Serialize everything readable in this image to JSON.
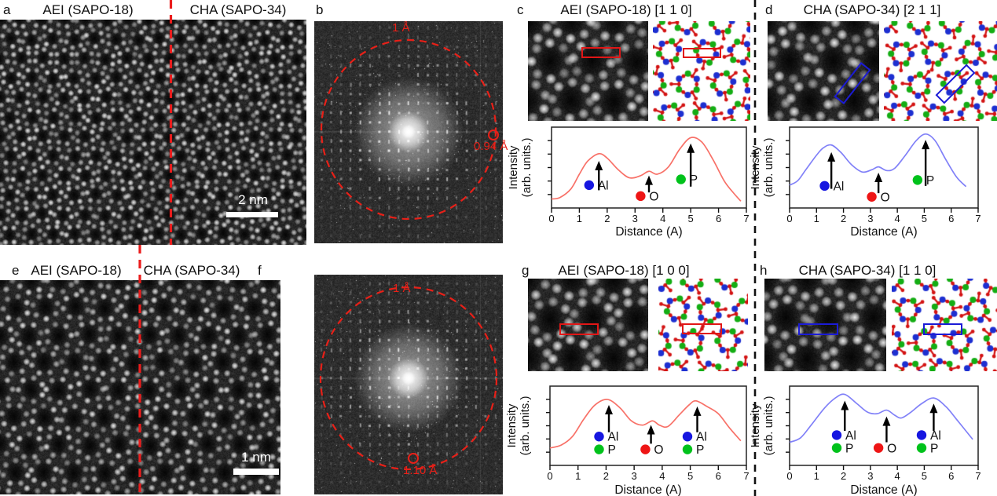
{
  "figure": {
    "panels": {
      "a": {
        "letter": "a",
        "label_left": "AEI (SAPO-18)",
        "label_right": "CHA (SAPO-34)",
        "scale_bar": "2 nm"
      },
      "b": {
        "letter": "b",
        "ring_label": "1 Å",
        "spot_label": "0.94 Å"
      },
      "c": {
        "letter": "c",
        "title": "AEI (SAPO-18) [1 1 0]"
      },
      "d": {
        "letter": "d",
        "title": "CHA (SAPO-34) [2 1 1]"
      },
      "e": {
        "letter": "e",
        "label_left": "AEI (SAPO-18)",
        "label_right": "CHA (SAPO-34)",
        "scale_bar": "1 nm"
      },
      "f": {
        "letter": "f",
        "ring_label": "1 Å",
        "spot_label": "1.10 Å"
      },
      "g": {
        "letter": "g",
        "title": "AEI (SAPO-18) [1 0 0]"
      },
      "h": {
        "letter": "h",
        "title": "CHA (SAPO-34) [1 1 0]"
      }
    },
    "colors": {
      "red_annotation": "#e82018",
      "blue_annotation": "#1b1bd6",
      "red_curve": "#f87168",
      "blue_curve": "#8181f8",
      "al_dot": "#1616e0",
      "o_dot": "#ee1515",
      "p_dot": "#00c21b"
    }
  },
  "chart_data": [
    {
      "id": "c",
      "type": "line",
      "curve_color": "#f87168",
      "xlabel": "Distance (A)",
      "ylabel": [
        "Intensity",
        "(arb. units.)"
      ],
      "xlim": [
        0,
        7
      ],
      "xticks": [
        0,
        1,
        2,
        3,
        4,
        5,
        6,
        7
      ],
      "x": [
        0,
        0.3,
        0.7,
        1.0,
        1.3,
        1.7,
        2.0,
        2.4,
        2.8,
        3.2,
        3.5,
        3.8,
        4.2,
        4.6,
        5.0,
        5.4,
        5.8,
        6.2,
        6.5,
        6.8
      ],
      "y": [
        0.08,
        0.1,
        0.22,
        0.42,
        0.6,
        0.7,
        0.64,
        0.48,
        0.37,
        0.4,
        0.46,
        0.42,
        0.52,
        0.76,
        0.92,
        0.86,
        0.62,
        0.33,
        0.18,
        0.05
      ],
      "peaks": [
        {
          "x": 1.7,
          "element": "Al"
        },
        {
          "x": 3.5,
          "element": "O"
        },
        {
          "x": 5.0,
          "element": "P"
        }
      ],
      "arrows": [
        {
          "x": 1.7,
          "y0": 0.2,
          "y1": 0.58
        },
        {
          "x": 3.5,
          "y0": 0.17,
          "y1": 0.38
        },
        {
          "x": 5.0,
          "y0": 0.25,
          "y1": 0.82
        }
      ],
      "legend": [
        {
          "label": "Al",
          "color": "#1616e0",
          "x": 1.35,
          "y": 0.27
        },
        {
          "label": "O",
          "color": "#ee1515",
          "x": 3.2,
          "y": 0.12
        },
        {
          "label": "P",
          "color": "#00c21b",
          "x": 4.65,
          "y": 0.35
        }
      ]
    },
    {
      "id": "d",
      "type": "line",
      "curve_color": "#8181f8",
      "xlabel": "Distance (A)",
      "ylabel": [
        "Intensity",
        "(arb. units.)"
      ],
      "xlim": [
        0,
        7
      ],
      "xticks": [
        0,
        1,
        2,
        3,
        4,
        5,
        6,
        7
      ],
      "x": [
        0,
        0.3,
        0.6,
        1.0,
        1.25,
        1.55,
        1.9,
        2.3,
        2.7,
        3.05,
        3.3,
        3.6,
        3.9,
        4.3,
        4.7,
        5.05,
        5.4,
        5.8,
        6.2,
        6.55
      ],
      "y": [
        0.27,
        0.33,
        0.48,
        0.68,
        0.78,
        0.82,
        0.72,
        0.55,
        0.45,
        0.48,
        0.52,
        0.47,
        0.5,
        0.68,
        0.88,
        0.97,
        0.88,
        0.62,
        0.38,
        0.25
      ],
      "peaks": [
        {
          "x": 1.55,
          "element": "Al"
        },
        {
          "x": 3.3,
          "element": "O"
        },
        {
          "x": 5.05,
          "element": "P"
        }
      ],
      "arrows": [
        {
          "x": 1.55,
          "y0": 0.22,
          "y1": 0.7
        },
        {
          "x": 3.3,
          "y0": 0.16,
          "y1": 0.42
        },
        {
          "x": 5.05,
          "y0": 0.26,
          "y1": 0.87
        }
      ],
      "legend": [
        {
          "label": "Al",
          "color": "#1616e0",
          "x": 1.3,
          "y": 0.26
        },
        {
          "label": "O",
          "color": "#ee1515",
          "x": 3.05,
          "y": 0.11
        },
        {
          "label": "P",
          "color": "#00c21b",
          "x": 4.75,
          "y": 0.34
        }
      ]
    },
    {
      "id": "g",
      "type": "line",
      "curve_color": "#f87168",
      "xlabel": "Distance (A)",
      "ylabel": [
        "Intensity",
        "(arb. units.)"
      ],
      "xlim": [
        0,
        7
      ],
      "xticks": [
        0,
        1,
        2,
        3,
        4,
        5,
        6,
        7
      ],
      "x": [
        0,
        0.4,
        0.8,
        1.2,
        1.6,
        2.05,
        2.5,
        2.9,
        3.3,
        3.65,
        3.9,
        4.2,
        4.6,
        4.95,
        5.2,
        5.6,
        6.0,
        6.4,
        6.8
      ],
      "y": [
        0.2,
        0.24,
        0.36,
        0.6,
        0.8,
        0.88,
        0.76,
        0.58,
        0.52,
        0.58,
        0.52,
        0.5,
        0.66,
        0.8,
        0.86,
        0.78,
        0.68,
        0.48,
        0.3
      ],
      "peaks": [
        {
          "x": 2.1,
          "element": "Al/P"
        },
        {
          "x": 3.6,
          "element": "O"
        },
        {
          "x": 5.25,
          "element": "Al/P"
        }
      ],
      "arrows": [
        {
          "x": 2.1,
          "y0": 0.42,
          "y1": 0.78
        },
        {
          "x": 3.6,
          "y0": 0.26,
          "y1": 0.5
        },
        {
          "x": 5.25,
          "y0": 0.42,
          "y1": 0.76
        }
      ],
      "legend": [
        {
          "label": "Al",
          "color": "#1616e0",
          "x": 1.75,
          "y": 0.36
        },
        {
          "label": "P",
          "color": "#00c21b",
          "x": 1.75,
          "y": 0.18
        },
        {
          "label": "O",
          "color": "#ee1515",
          "x": 3.4,
          "y": 0.18
        },
        {
          "label": "Al",
          "color": "#1616e0",
          "x": 4.9,
          "y": 0.36
        },
        {
          "label": "P",
          "color": "#00c21b",
          "x": 4.9,
          "y": 0.18
        }
      ]
    },
    {
      "id": "h",
      "type": "line",
      "curve_color": "#8181f8",
      "xlabel": "Distance (A)",
      "ylabel": [
        "Intensity",
        "(arb. units.)"
      ],
      "xlim": [
        0,
        7
      ],
      "xticks": [
        0,
        1,
        2,
        3,
        4,
        5,
        6,
        7
      ],
      "x": [
        0,
        0.4,
        0.8,
        1.3,
        1.7,
        2.05,
        2.5,
        2.9,
        3.25,
        3.6,
        3.9,
        4.15,
        4.5,
        4.9,
        5.35,
        5.8,
        6.2,
        6.8
      ],
      "y": [
        0.28,
        0.34,
        0.52,
        0.76,
        0.9,
        0.95,
        0.82,
        0.7,
        0.68,
        0.73,
        0.66,
        0.62,
        0.7,
        0.82,
        0.9,
        0.78,
        0.6,
        0.32
      ],
      "peaks": [
        {
          "x": 2.05,
          "element": "Al/P"
        },
        {
          "x": 3.6,
          "element": "O"
        },
        {
          "x": 5.35,
          "element": "Al/P"
        }
      ],
      "arrows": [
        {
          "x": 2.05,
          "y0": 0.44,
          "y1": 0.84
        },
        {
          "x": 3.6,
          "y0": 0.28,
          "y1": 0.62
        },
        {
          "x": 5.35,
          "y0": 0.44,
          "y1": 0.8
        }
      ],
      "legend": [
        {
          "label": "Al",
          "color": "#1616e0",
          "x": 1.75,
          "y": 0.38
        },
        {
          "label": "P",
          "color": "#00c21b",
          "x": 1.75,
          "y": 0.2
        },
        {
          "label": "O",
          "color": "#ee1515",
          "x": 3.3,
          "y": 0.2
        },
        {
          "label": "Al",
          "color": "#1616e0",
          "x": 4.9,
          "y": 0.38
        },
        {
          "label": "P",
          "color": "#00c21b",
          "x": 4.9,
          "y": 0.2
        }
      ]
    }
  ]
}
